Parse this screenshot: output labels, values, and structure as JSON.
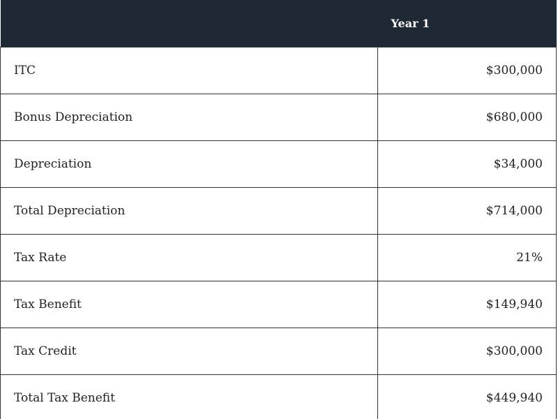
{
  "table": {
    "header": [
      "Year 1"
    ],
    "rows": [
      [
        "ITC",
        "$300,000"
      ],
      [
        "Bonus Depreciation",
        "$680,000"
      ],
      [
        "Depreciation",
        "$34,000"
      ],
      [
        "Total Depreciation",
        "$714,000"
      ],
      [
        "Tax Rate",
        "21%"
      ],
      [
        "Tax Benefit",
        "$149,940"
      ],
      [
        "Tax Credit",
        "$300,000"
      ],
      [
        "Total Tax Benefit",
        "$449,940"
      ]
    ]
  }
}
